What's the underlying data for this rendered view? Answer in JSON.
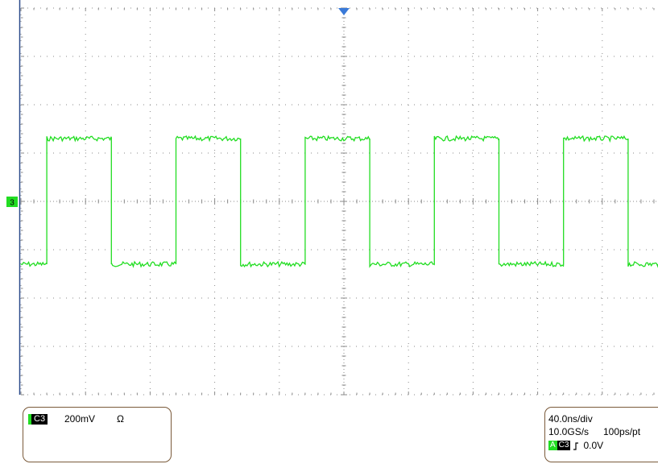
{
  "colors": {
    "trace": "#22dd22",
    "grid": "#8a8a8a",
    "trigger_marker": "#3a7ad8",
    "panel_border": "#7a5a3a"
  },
  "waveform": {
    "type": "square",
    "period_ns": 80,
    "high_level_mV": 260,
    "low_level_mV": -260,
    "first_rising_edge_ns": -264,
    "time_div_ns": 40,
    "volt_div_mV": 200
  },
  "ground_marker": {
    "label": "3"
  },
  "channel": {
    "name": "C3",
    "scale": "200mV",
    "impedance": "Ω"
  },
  "timebase": {
    "time_per_div": "40.0ns/div",
    "sample_rate": "10.0GS/s",
    "point_interval": "100ps/pt"
  },
  "trigger": {
    "source_badge": "A",
    "channel": "C3",
    "slope_icon": "rising-edge-icon",
    "level": "0.0V"
  }
}
